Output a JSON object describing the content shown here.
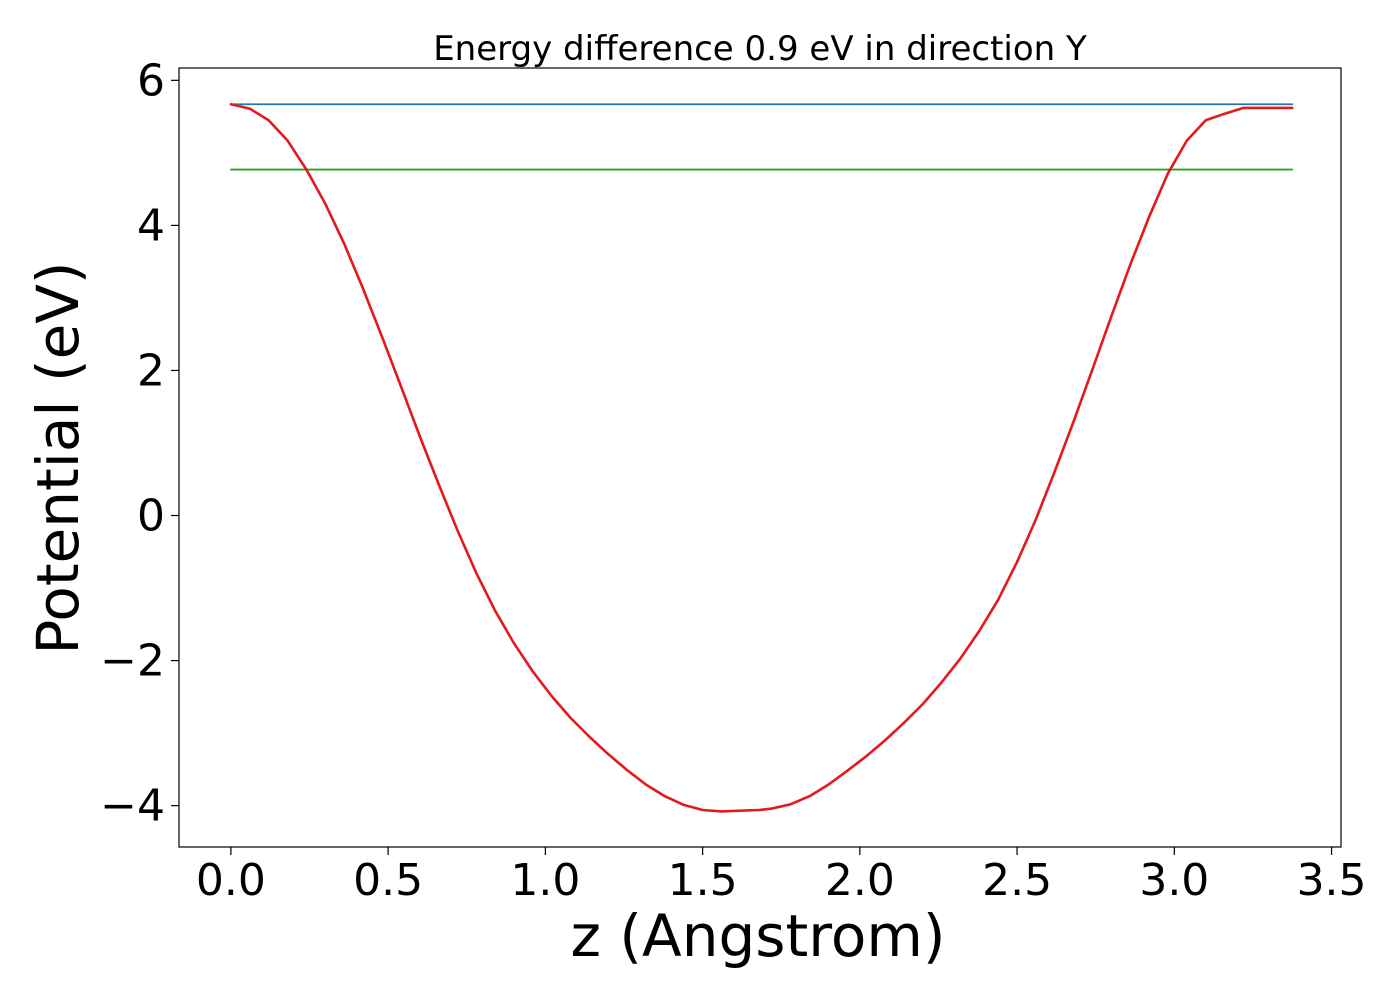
{
  "chart_data": {
    "type": "line",
    "title": "Energy difference 0.9 eV in direction Y",
    "xlabel": "z (Angstrom)",
    "ylabel": "Potential (eV)",
    "xlim": [
      -0.165,
      3.53
    ],
    "ylim": [
      -4.57,
      6.17
    ],
    "xticks": [
      0.0,
      0.5,
      1.0,
      1.5,
      2.0,
      2.5,
      3.0,
      3.5
    ],
    "xtick_labels": [
      "0.0",
      "0.5",
      "1.0",
      "1.5",
      "2.0",
      "2.5",
      "3.0",
      "3.5"
    ],
    "yticks": [
      -4,
      -2,
      0,
      2,
      4,
      6
    ],
    "ytick_labels": [
      "−4",
      "−2",
      "0",
      "2",
      "4",
      "6"
    ],
    "grid": false,
    "series": [
      {
        "color": "#1f77b4",
        "x": [
          0.0,
          3.375
        ],
        "y": [
          5.67,
          5.67
        ]
      },
      {
        "color": "#2ca02c",
        "x": [
          0.0,
          3.375
        ],
        "y": [
          4.77,
          4.77
        ]
      },
      {
        "color": "#e31a1c",
        "x": [
          0.0,
          0.06,
          0.12,
          0.18,
          0.24,
          0.3,
          0.36,
          0.42,
          0.48,
          0.54,
          0.6,
          0.66,
          0.72,
          0.78,
          0.84,
          0.9,
          0.96,
          1.02,
          1.08,
          1.14,
          1.2,
          1.26,
          1.32,
          1.38,
          1.44,
          1.5,
          1.56,
          1.62,
          1.68,
          1.72,
          1.78,
          1.84,
          1.9,
          1.96,
          2.02,
          2.08,
          2.14,
          2.2,
          2.26,
          2.32,
          2.38,
          2.44,
          2.5,
          2.56,
          2.62,
          2.68,
          2.74,
          2.8,
          2.86,
          2.92,
          2.98,
          3.04,
          3.1,
          3.16,
          3.22,
          3.26,
          3.32,
          3.375
        ],
        "y": [
          5.67,
          5.61,
          5.45,
          5.17,
          4.77,
          4.3,
          3.75,
          3.13,
          2.47,
          1.79,
          1.1,
          0.44,
          -0.2,
          -0.79,
          -1.31,
          -1.76,
          -2.15,
          -2.49,
          -2.79,
          -3.05,
          -3.29,
          -3.51,
          -3.71,
          -3.87,
          -3.99,
          -4.06,
          -4.08,
          -4.07,
          -4.06,
          -4.04,
          -3.98,
          -3.87,
          -3.71,
          -3.52,
          -3.32,
          -3.1,
          -2.86,
          -2.6,
          -2.3,
          -1.97,
          -1.59,
          -1.16,
          -0.64,
          -0.05,
          0.61,
          1.3,
          2.02,
          2.75,
          3.46,
          4.12,
          4.72,
          5.17,
          5.45,
          5.54,
          5.62,
          5.62,
          5.62,
          5.62
        ]
      }
    ]
  }
}
